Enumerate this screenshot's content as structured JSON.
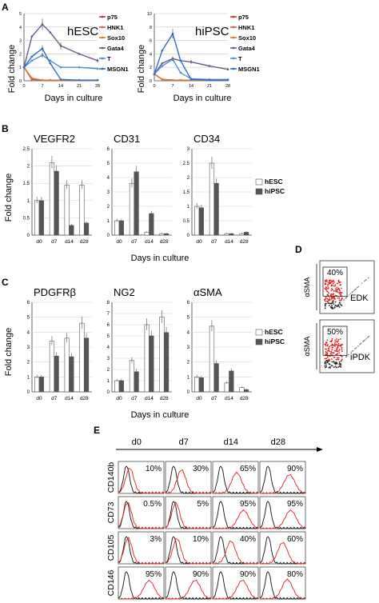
{
  "panel_labels": {
    "a": "A",
    "b": "B",
    "c": "C",
    "d": "D",
    "e": "E"
  },
  "colors": {
    "p75": "#c0392b",
    "HNK1": "#d45a5a",
    "Sox10": "#d87a2b",
    "Gata4": "#6b5a8e",
    "T": "#4f8fd6",
    "MSGN1": "#2f6fc0",
    "hesc_bar": "#ffffff",
    "hipsc_bar": "#555555",
    "flow_red": "#e02020",
    "flow_black": "#111111",
    "dot_red": "#e31c1c"
  },
  "panel_a": {
    "xlabel": "Days in culture",
    "ylabel": "Fold change",
    "x_ticks": [
      "0",
      "7",
      "14",
      "21",
      "28"
    ],
    "legend": [
      "p75",
      "HNK1",
      "Sox10",
      "Gata4",
      "T",
      "MSGN1"
    ],
    "left": {
      "title": "hESC",
      "y_ticks": [
        "0",
        "1",
        "2",
        "3",
        "4",
        "5"
      ]
    },
    "right": {
      "title": "hiPSC",
      "y_ticks": [
        "0",
        "2",
        "4",
        "6",
        "8",
        "10"
      ]
    }
  },
  "panel_b": {
    "ylabel": "Fold change",
    "xlabel": "Days in culture",
    "categories": [
      "d0",
      "d7",
      "d14",
      "d28"
    ],
    "legend": [
      "hESC",
      "hiPSC"
    ],
    "subplots": [
      {
        "title": "VEGFR2",
        "y_ticks": [
          "0",
          "0.5",
          "1",
          "1.5",
          "2",
          "2.5"
        ]
      },
      {
        "title": "CD31",
        "y_ticks": [
          "0",
          "1",
          "2",
          "3",
          "4",
          "5",
          "6"
        ]
      },
      {
        "title": "CD34",
        "y_ticks": [
          "0",
          "0.5",
          "1",
          "1.5",
          "2",
          "2.5",
          "3"
        ]
      }
    ]
  },
  "panel_c": {
    "ylabel": "Fold change",
    "xlabel": "Days in culture",
    "categories": [
      "d0",
      "d7",
      "d14",
      "d28"
    ],
    "legend": [
      "hESC",
      "hiPSC"
    ],
    "subplots": [
      {
        "title": "PDGFRβ",
        "y_ticks": [
          "0",
          "1",
          "2",
          "3",
          "4",
          "5",
          "6"
        ]
      },
      {
        "title": "NG2",
        "y_ticks": [
          "0",
          "1",
          "2",
          "3",
          "4",
          "5",
          "6",
          "7",
          "8"
        ]
      },
      {
        "title": "αSMA",
        "y_ticks": [
          "0",
          "1",
          "2",
          "3",
          "4",
          "5",
          "6"
        ]
      }
    ]
  },
  "panel_d": {
    "ylabel": "αSMA",
    "plots": [
      {
        "percent": "40%",
        "label": "EDK"
      },
      {
        "percent": "50%",
        "label": "iPDK"
      }
    ]
  },
  "panel_e": {
    "days": [
      "d0",
      "d7",
      "d14",
      "d28"
    ],
    "rows": [
      {
        "marker": "CD140b",
        "values": [
          "10%",
          "30%",
          "65%",
          "90%"
        ]
      },
      {
        "marker": "CD73",
        "values": [
          "0.5%",
          "5%",
          "95%",
          "95%"
        ]
      },
      {
        "marker": "CD105",
        "values": [
          "3%",
          "10%",
          "40%",
          "60%"
        ]
      },
      {
        "marker": "CD146",
        "values": [
          "95%",
          "90%",
          "90%",
          "80%"
        ]
      }
    ]
  },
  "chart_data": [
    {
      "type": "line",
      "title": "hESC",
      "xlabel": "Days in culture",
      "ylabel": "Fold change",
      "x": [
        0,
        3,
        7,
        10,
        14,
        21,
        28
      ],
      "ylim": [
        0,
        5
      ],
      "series": [
        {
          "name": "p75",
          "values": [
            1,
            0.1,
            0.05,
            0.05,
            0.05,
            0.05,
            0.05
          ]
        },
        {
          "name": "HNK1",
          "values": [
            1,
            0.15,
            0.05,
            0.05,
            0.05,
            0.05,
            0.05
          ]
        },
        {
          "name": "Sox10",
          "values": [
            1,
            0.2,
            0.05,
            0.05,
            0.05,
            0.05,
            0.05
          ]
        },
        {
          "name": "Gata4",
          "values": [
            1,
            3.3,
            4.2,
            3.6,
            2.6,
            2.0,
            1.5
          ]
        },
        {
          "name": "T",
          "values": [
            1,
            1.5,
            1.9,
            1.5,
            1.0,
            1.0,
            0.9
          ]
        },
        {
          "name": "MSGN1",
          "values": [
            1,
            1.8,
            2.4,
            1.3,
            0.1,
            0.05,
            0.05
          ]
        }
      ]
    },
    {
      "type": "line",
      "title": "hiPSC",
      "xlabel": "Days in culture",
      "ylabel": "Fold change",
      "x": [
        0,
        3,
        7,
        10,
        14,
        21,
        28
      ],
      "ylim": [
        0,
        10
      ],
      "series": [
        {
          "name": "p75",
          "values": [
            1,
            0.2,
            0.1,
            0.1,
            0.1,
            0.1,
            0.1
          ]
        },
        {
          "name": "HNK1",
          "values": [
            1,
            0.2,
            0.1,
            0.1,
            0.1,
            0.1,
            0.1
          ]
        },
        {
          "name": "Sox10",
          "values": [
            1,
            0.2,
            0.1,
            0.1,
            0.1,
            0.1,
            0.1
          ]
        },
        {
          "name": "Gata4",
          "values": [
            1,
            2.6,
            3.3,
            3.0,
            2.8,
            2.2,
            1.7
          ]
        },
        {
          "name": "T",
          "values": [
            1,
            2.2,
            3.2,
            1.2,
            0.3,
            0.2,
            0.2
          ]
        },
        {
          "name": "MSGN1",
          "values": [
            1,
            4.5,
            7.0,
            3.0,
            0.2,
            0.1,
            0.1
          ]
        }
      ]
    },
    {
      "type": "bar",
      "title": "VEGFR2",
      "categories": [
        "d0",
        "d7",
        "d14",
        "d28"
      ],
      "ylim": [
        0,
        2.5
      ],
      "series": [
        {
          "name": "hESC",
          "values": [
            1.0,
            2.1,
            1.45,
            1.45
          ]
        },
        {
          "name": "hiPSC",
          "values": [
            1.0,
            1.85,
            0.28,
            0.35
          ]
        }
      ]
    },
    {
      "type": "bar",
      "title": "CD31",
      "categories": [
        "d0",
        "d7",
        "d14",
        "d28"
      ],
      "ylim": [
        0,
        6
      ],
      "series": [
        {
          "name": "hESC",
          "values": [
            1.0,
            3.6,
            0.2,
            0.1
          ]
        },
        {
          "name": "hiPSC",
          "values": [
            1.0,
            4.4,
            1.5,
            0.1
          ]
        }
      ]
    },
    {
      "type": "bar",
      "title": "CD34",
      "categories": [
        "d0",
        "d7",
        "d14",
        "d28"
      ],
      "ylim": [
        0,
        3
      ],
      "series": [
        {
          "name": "hESC",
          "values": [
            1.0,
            2.5,
            0.05,
            0.05
          ]
        },
        {
          "name": "hiPSC",
          "values": [
            0.95,
            1.8,
            0.05,
            0.1
          ]
        }
      ]
    },
    {
      "type": "bar",
      "title": "PDGFRβ",
      "categories": [
        "d0",
        "d7",
        "d14",
        "d28"
      ],
      "ylim": [
        0,
        6
      ],
      "series": [
        {
          "name": "hESC",
          "values": [
            1.0,
            3.4,
            3.6,
            4.6
          ]
        },
        {
          "name": "hiPSC",
          "values": [
            1.0,
            2.4,
            2.35,
            3.6
          ]
        }
      ]
    },
    {
      "type": "bar",
      "title": "NG2",
      "categories": [
        "d0",
        "d7",
        "d14",
        "d28"
      ],
      "ylim": [
        0,
        8
      ],
      "series": [
        {
          "name": "hESC",
          "values": [
            1.0,
            2.8,
            6.0,
            6.7
          ]
        },
        {
          "name": "hiPSC",
          "values": [
            1.0,
            1.8,
            5.0,
            5.3
          ]
        }
      ]
    },
    {
      "type": "bar",
      "title": "αSMA",
      "categories": [
        "d0",
        "d7",
        "d14",
        "d28"
      ],
      "ylim": [
        0,
        6
      ],
      "series": [
        {
          "name": "hESC",
          "values": [
            1.0,
            4.4,
            0.6,
            0.3
          ]
        },
        {
          "name": "hiPSC",
          "values": [
            0.95,
            1.9,
            1.4,
            0.15
          ]
        }
      ]
    }
  ]
}
